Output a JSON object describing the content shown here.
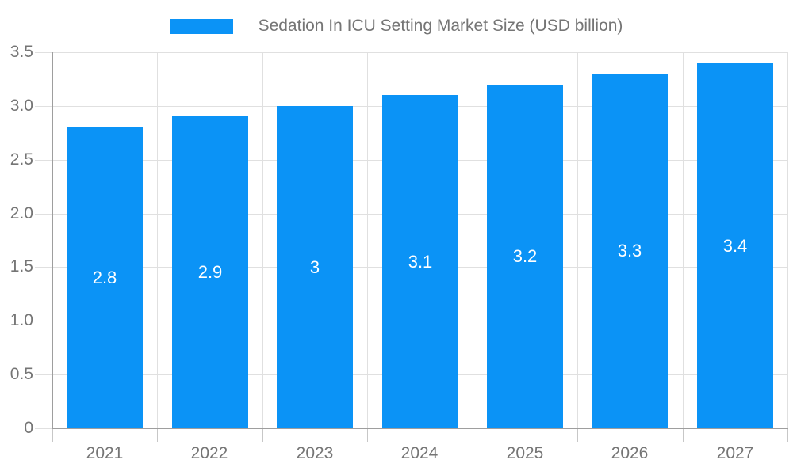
{
  "chart_data": {
    "type": "bar",
    "title": "Sedation In ICU Setting Market Size (USD billion)",
    "legend": {
      "label": "Sedation In ICU Setting Market Size (USD billion)",
      "position": "top-center"
    },
    "categories": [
      "2021",
      "2022",
      "2023",
      "2024",
      "2025",
      "2026",
      "2027"
    ],
    "values": [
      2.8,
      2.9,
      3,
      3.1,
      3.2,
      3.3,
      3.4
    ],
    "value_labels": [
      "2.8",
      "2.9",
      "3",
      "3.1",
      "3.2",
      "3.3",
      "3.4"
    ],
    "xlabel": "",
    "ylabel": "",
    "ylim": [
      0,
      3.5
    ],
    "y_axis": {
      "values": [
        0,
        0.5,
        1,
        1.5,
        2,
        2.5,
        3,
        3.5
      ],
      "labels": [
        "0",
        "0.5",
        "1.0",
        "1.5",
        "2.0",
        "2.5",
        "3.0",
        "3.5"
      ]
    },
    "grid": true,
    "legend_position": "top",
    "colors": {
      "bar": "#0b93f6",
      "grid": "#e0e0e0",
      "axis": "#9e9e9e",
      "text": "#757575",
      "value_text": "#ffffff"
    }
  }
}
